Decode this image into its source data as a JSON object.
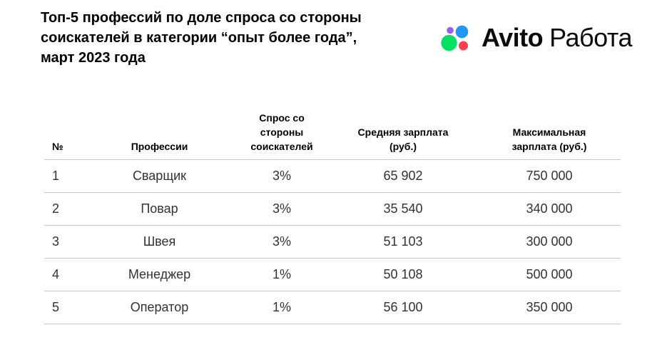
{
  "title_display": "Топ-5 профессий по доле спроса со стороны\nсоискателей в категории “опыт более года”,\nмарт 2023 года",
  "logo": {
    "brand": "Avito",
    "product": "Работа",
    "colors": {
      "purple": "#965EEB",
      "blue": "#2196F3",
      "green": "#04E061",
      "red": "#FF4053"
    }
  },
  "chart_data": {
    "type": "table",
    "title": "Топ-5 профессий по доле спроса со стороны соискателей в категории “опыт более года”, март 2023 года",
    "columns": [
      "№",
      "Профессии",
      "Спрос со стороны соискателей",
      "Средняя зарплата (руб.)",
      "Максимальная зарплата (руб.)"
    ],
    "column_display": [
      "№",
      "Профессии",
      "Спрос со\nстороны\nсоискателей",
      "Средняя зарплата\n(руб.)",
      "Максимальная\nзарплата (руб.)"
    ],
    "rows": [
      [
        "1",
        "Сварщик",
        "3%",
        "65 902",
        "750 000"
      ],
      [
        "2",
        "Повар",
        "3%",
        "35 540",
        "340 000"
      ],
      [
        "3",
        "Швея",
        "3%",
        "51 103",
        "300 000"
      ],
      [
        "4",
        "Менеджер",
        "1%",
        "50 108",
        "500 000"
      ],
      [
        "5",
        "Оператор",
        "1%",
        "56 100",
        "350 000"
      ]
    ]
  }
}
